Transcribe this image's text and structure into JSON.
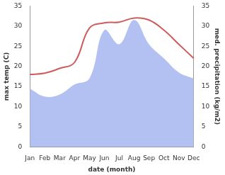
{
  "chart_data": {
    "type": "line",
    "categories": [
      "Jan",
      "Feb",
      "Mar",
      "Apr",
      "May",
      "Jun",
      "Jul",
      "Aug",
      "Sep",
      "Oct",
      "Nov",
      "Dec"
    ],
    "xlabel": "date (month)",
    "ylabel": "max temp (C)",
    "y2label": "med. precipitation (kg/m2)",
    "series": [
      {
        "type": "area",
        "axis": "y2",
        "color": "#b3c1f2",
        "values": [
          14.5,
          12.5,
          13,
          15.5,
          17,
          29,
          25.5,
          31.5,
          25.5,
          22,
          18.5,
          17
        ]
      },
      {
        "type": "line",
        "axis": "y",
        "color": "#cd5c5c",
        "values": [
          18,
          18.3,
          19.5,
          21,
          29.5,
          30.8,
          31,
          32,
          31.5,
          29,
          25.5,
          22
        ]
      }
    ],
    "ylim": [
      0,
      35
    ],
    "yticks": [
      0,
      5,
      10,
      15,
      20,
      25,
      30,
      35
    ],
    "y2lim": [
      0,
      35
    ],
    "y2ticks": [
      0,
      5,
      10,
      15,
      20,
      25,
      30,
      35
    ],
    "grid": false
  }
}
